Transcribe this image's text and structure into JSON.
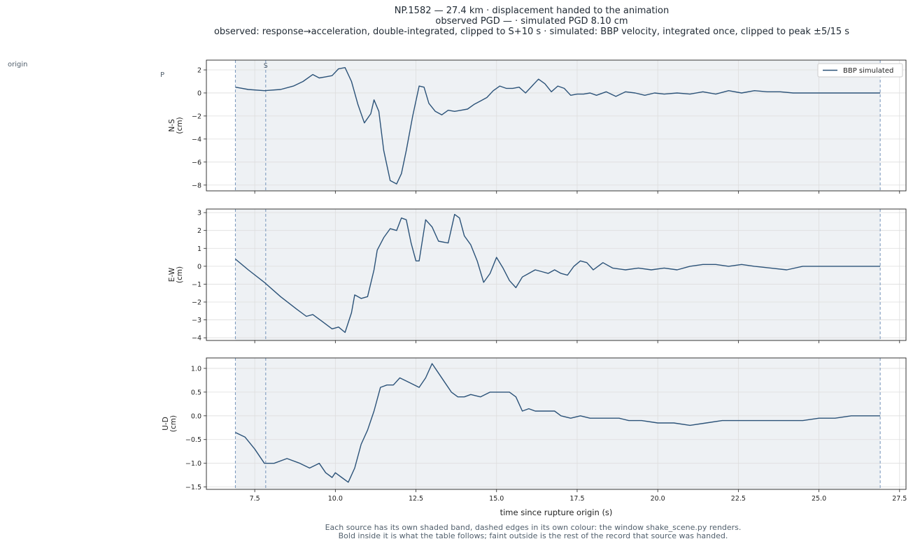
{
  "header": {
    "title_line1": "NP.1582  —  27.4 km   ·   displacement handed to the animation",
    "title_line2": "observed PGD —   ·   simulated PGD 8.10 cm",
    "title_line3": "observed: response→acceleration, double-integrated, clipped to S+10 s   ·   simulated: BBP velocity, integrated once, clipped to peak ±5/15 s"
  },
  "labels": {
    "origin": "origin",
    "p_marker": "P",
    "s_marker": "S"
  },
  "footer": {
    "line1": "Each source has its own shaded band, dashed edges in its own colour: the window shake_scene.py renders.",
    "line2": "Bold inside it is what the table follows;   faint outside is the rest of the record that source was handed."
  },
  "colors": {
    "series": "#2b5278",
    "band_fill": "#eef1f4",
    "band_edge": "#7f9cbf",
    "grid": "#dddddd",
    "axis": "#222222"
  },
  "chart_data": {
    "type": "line",
    "xlabel": "time since rupture origin (s)",
    "xlim": [
      6.0,
      27.7
    ],
    "xticks": [
      7.5,
      10.0,
      12.5,
      15.0,
      17.5,
      20.0,
      22.5,
      25.0,
      27.5
    ],
    "xtick_labels": [
      "7.5",
      "10.0",
      "12.5",
      "15.0",
      "17.5",
      "20.0",
      "22.5",
      "25.0",
      "27.5"
    ],
    "band": [
      6.9,
      26.9
    ],
    "p_time": 6.9,
    "s_time": 7.84,
    "legend": {
      "label": "BBP simulated",
      "placement": "top-right"
    },
    "grid": true,
    "panels": [
      {
        "id": "ns",
        "ylabel": "N-S\n(cm)",
        "ylim": [
          -8.5,
          2.85
        ],
        "yticks": [
          2,
          0,
          -2,
          -4,
          -6,
          -8
        ],
        "series": [
          {
            "name": "BBP simulated",
            "x": [
              6.9,
              7.3,
              7.8,
              8.3,
              8.7,
              9.0,
              9.3,
              9.5,
              9.7,
              9.9,
              10.1,
              10.3,
              10.5,
              10.7,
              10.9,
              11.1,
              11.2,
              11.35,
              11.5,
              11.7,
              11.9,
              12.05,
              12.2,
              12.4,
              12.6,
              12.75,
              12.9,
              13.1,
              13.3,
              13.5,
              13.7,
              13.9,
              14.1,
              14.3,
              14.5,
              14.7,
              14.9,
              15.1,
              15.3,
              15.5,
              15.7,
              15.9,
              16.1,
              16.3,
              16.5,
              16.7,
              16.9,
              17.1,
              17.3,
              17.5,
              17.7,
              17.9,
              18.1,
              18.4,
              18.7,
              19.0,
              19.3,
              19.6,
              19.9,
              20.2,
              20.6,
              21.0,
              21.4,
              21.8,
              22.2,
              22.6,
              23.0,
              23.4,
              23.8,
              24.2,
              24.6,
              25.0,
              25.5,
              26.0,
              26.5,
              26.9
            ],
            "y": [
              0.5,
              0.3,
              0.2,
              0.3,
              0.6,
              1.0,
              1.6,
              1.3,
              1.4,
              1.5,
              2.1,
              2.2,
              1.0,
              -1.0,
              -2.6,
              -1.8,
              -0.6,
              -1.6,
              -5.0,
              -7.6,
              -7.9,
              -7.0,
              -5.0,
              -2.0,
              0.6,
              0.5,
              -0.9,
              -1.6,
              -1.9,
              -1.5,
              -1.6,
              -1.5,
              -1.4,
              -1.0,
              -0.7,
              -0.4,
              0.2,
              0.6,
              0.4,
              0.4,
              0.5,
              0.0,
              0.6,
              1.2,
              0.8,
              0.1,
              0.6,
              0.4,
              -0.2,
              -0.1,
              -0.1,
              0.0,
              -0.2,
              0.1,
              -0.3,
              0.1,
              0.0,
              -0.2,
              0.0,
              -0.1,
              0.0,
              -0.1,
              0.1,
              -0.1,
              0.2,
              0.0,
              0.2,
              0.1,
              0.1,
              0.0,
              0.0,
              0.0,
              0.0,
              0.0,
              0.0,
              0.0
            ]
          }
        ]
      },
      {
        "id": "ew",
        "ylabel": "E-W\n(cm)",
        "ylim": [
          -4.15,
          3.2
        ],
        "yticks": [
          3,
          2,
          1,
          0,
          -1,
          -2,
          -3,
          -4
        ],
        "series": [
          {
            "name": "BBP simulated",
            "x": [
              6.9,
              7.3,
              7.8,
              8.3,
              8.8,
              9.1,
              9.3,
              9.6,
              9.9,
              10.1,
              10.3,
              10.5,
              10.6,
              10.8,
              11.0,
              11.2,
              11.3,
              11.5,
              11.7,
              11.9,
              12.05,
              12.2,
              12.35,
              12.5,
              12.6,
              12.8,
              13.0,
              13.2,
              13.5,
              13.7,
              13.85,
              14.0,
              14.2,
              14.4,
              14.6,
              14.8,
              15.0,
              15.2,
              15.4,
              15.6,
              15.8,
              16.0,
              16.2,
              16.4,
              16.6,
              16.8,
              17.0,
              17.2,
              17.4,
              17.6,
              17.8,
              18.0,
              18.3,
              18.6,
              19.0,
              19.4,
              19.8,
              20.2,
              20.6,
              21.0,
              21.4,
              21.8,
              22.2,
              22.6,
              23.0,
              23.5,
              24.0,
              24.5,
              25.0,
              25.5,
              26.0,
              26.5,
              26.9
            ],
            "y": [
              0.4,
              -0.2,
              -0.9,
              -1.7,
              -2.4,
              -2.8,
              -2.7,
              -3.1,
              -3.5,
              -3.4,
              -3.7,
              -2.6,
              -1.6,
              -1.8,
              -1.7,
              -0.2,
              0.9,
              1.6,
              2.1,
              2.0,
              2.7,
              2.6,
              1.3,
              0.3,
              0.3,
              2.6,
              2.2,
              1.4,
              1.3,
              2.9,
              2.7,
              1.7,
              1.2,
              0.3,
              -0.9,
              -0.4,
              0.5,
              -0.1,
              -0.8,
              -1.2,
              -0.6,
              -0.4,
              -0.2,
              -0.3,
              -0.4,
              -0.2,
              -0.4,
              -0.5,
              0.0,
              0.3,
              0.2,
              -0.2,
              0.2,
              -0.1,
              -0.2,
              -0.1,
              -0.2,
              -0.1,
              -0.2,
              0.0,
              0.1,
              0.1,
              0.0,
              0.1,
              0.0,
              -0.1,
              -0.2,
              0.0,
              0.0,
              0.0,
              0.0,
              0.0,
              0.0
            ]
          }
        ]
      },
      {
        "id": "ud",
        "ylabel": "U-D\n(cm)",
        "ylim": [
          -1.55,
          1.22
        ],
        "yticks": [
          1.0,
          0.5,
          0.0,
          -0.5,
          -1.0,
          -1.5
        ],
        "series": [
          {
            "name": "BBP simulated",
            "x": [
              6.9,
              7.2,
              7.5,
              7.8,
              8.1,
              8.5,
              8.9,
              9.2,
              9.5,
              9.7,
              9.9,
              10.0,
              10.2,
              10.4,
              10.6,
              10.8,
              11.0,
              11.2,
              11.4,
              11.6,
              11.8,
              12.0,
              12.3,
              12.6,
              12.8,
              13.0,
              13.2,
              13.4,
              13.6,
              13.8,
              14.0,
              14.2,
              14.5,
              14.8,
              15.1,
              15.4,
              15.6,
              15.8,
              16.0,
              16.2,
              16.5,
              16.8,
              17.0,
              17.3,
              17.6,
              17.9,
              18.2,
              18.5,
              18.8,
              19.1,
              19.5,
              20.0,
              20.5,
              21.0,
              21.5,
              22.0,
              22.5,
              23.0,
              23.5,
              24.0,
              24.5,
              25.0,
              25.5,
              26.0,
              26.5,
              26.9
            ],
            "y": [
              -0.35,
              -0.45,
              -0.7,
              -1.0,
              -1.0,
              -0.9,
              -1.0,
              -1.1,
              -1.0,
              -1.2,
              -1.3,
              -1.2,
              -1.3,
              -1.4,
              -1.1,
              -0.6,
              -0.3,
              0.1,
              0.6,
              0.65,
              0.65,
              0.8,
              0.7,
              0.6,
              0.8,
              1.1,
              0.9,
              0.7,
              0.5,
              0.4,
              0.4,
              0.45,
              0.4,
              0.5,
              0.5,
              0.5,
              0.4,
              0.1,
              0.15,
              0.1,
              0.1,
              0.1,
              0.0,
              -0.05,
              0.0,
              -0.05,
              -0.05,
              -0.05,
              -0.05,
              -0.1,
              -0.1,
              -0.15,
              -0.15,
              -0.2,
              -0.15,
              -0.1,
              -0.1,
              -0.1,
              -0.1,
              -0.1,
              -0.1,
              -0.05,
              -0.05,
              0.0,
              0.0,
              0.0
            ]
          }
        ]
      }
    ]
  }
}
